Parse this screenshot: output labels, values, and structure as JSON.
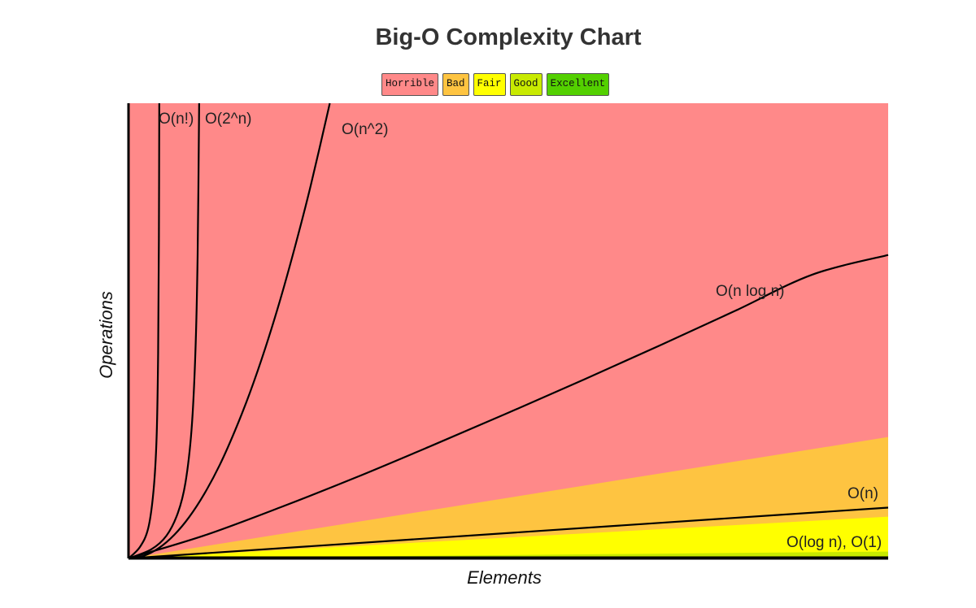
{
  "chart_data": {
    "type": "line",
    "title": "Big-O Complexity Chart",
    "xlabel": "Elements",
    "ylabel": "Operations",
    "xlim": [
      0,
      100
    ],
    "ylim": [
      0,
      60
    ],
    "grid": false,
    "legend_position": "top-center",
    "legend": [
      {
        "label": "Horrible",
        "color": "#ff8989"
      },
      {
        "label": "Bad",
        "color": "#fec441"
      },
      {
        "label": "Fair",
        "color": "#ffff00"
      },
      {
        "label": "Good",
        "color": "#c8ea00"
      },
      {
        "label": "Excellent",
        "color": "#53d000"
      }
    ],
    "regions": [
      {
        "name": "Horrible",
        "color": "#ff8989",
        "boundary": [
          [
            0,
            0
          ],
          [
            100,
            60
          ]
        ]
      },
      {
        "name": "Bad",
        "color": "#fec441",
        "boundary": [
          [
            0,
            0
          ],
          [
            100,
            16
          ]
        ]
      },
      {
        "name": "Fair",
        "color": "#ffff00",
        "boundary": [
          [
            0,
            0
          ],
          [
            100,
            5.5
          ]
        ]
      },
      {
        "name": "Good",
        "color": "#c8ea00",
        "boundary": [
          [
            0,
            0
          ],
          [
            100,
            0.9
          ]
        ]
      },
      {
        "name": "Excellent",
        "color": "#53d000",
        "boundary": [
          [
            0,
            0
          ],
          [
            100,
            0.2
          ]
        ]
      }
    ],
    "series": [
      {
        "name": "O(log n), O(1)",
        "label": "O(log n), O(1)",
        "x": [
          0,
          100
        ],
        "y": [
          0.05,
          0.05
        ]
      },
      {
        "name": "O(n)",
        "label": "O(n)",
        "x": [
          0,
          100
        ],
        "y": [
          0,
          6.7
        ]
      },
      {
        "name": "O(n log n)",
        "label": "O(n log n)",
        "x": [
          0,
          10,
          20,
          30,
          40,
          50,
          60,
          70,
          80,
          90,
          100
        ],
        "y": [
          0,
          3.03,
          6.74,
          10.7,
          14.9,
          19.2,
          23.6,
          28.1,
          32.7,
          37.4,
          40
        ]
      },
      {
        "name": "O(n^2)",
        "label": "O(n^2)",
        "x": [
          0,
          2,
          4,
          6,
          8,
          10,
          12,
          14,
          16,
          18,
          20,
          22,
          24,
          26.5
        ],
        "y": [
          0,
          0.34,
          1.37,
          3.08,
          5.47,
          8.55,
          12.3,
          16.8,
          21.9,
          27.7,
          34.2,
          41.4,
          49.2,
          60
        ]
      },
      {
        "name": "O(2^n)",
        "label": "O(2^n)",
        "x": [
          0,
          3,
          5,
          6.5,
          7.5,
          8.3,
          8.8,
          9.1,
          9.3
        ],
        "y": [
          0,
          1.2,
          3,
          6,
          10,
          17,
          27,
          40,
          60
        ]
      },
      {
        "name": "O(n!)",
        "label": "O(n!)",
        "x": [
          0,
          1.5,
          2.6,
          3.3,
          3.7,
          3.9,
          4.0,
          4.05
        ],
        "y": [
          0,
          1.5,
          4,
          9,
          16,
          27,
          42,
          60
        ]
      }
    ]
  }
}
